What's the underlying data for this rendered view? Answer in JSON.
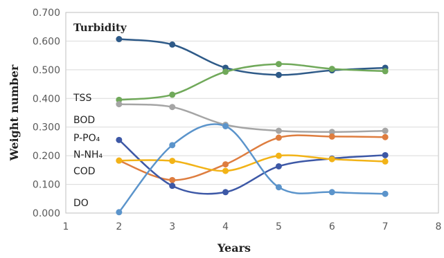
{
  "chart_data": {
    "type": "line",
    "xlabel": "Years",
    "ylabel": "Weight number",
    "xlim": [
      1,
      8
    ],
    "ylim": [
      0,
      0.7
    ],
    "x_ticks": [
      "1",
      "2",
      "3",
      "4",
      "5",
      "6",
      "7",
      "8"
    ],
    "y_ticks": [
      "0.000",
      "0.100",
      "0.200",
      "0.300",
      "0.400",
      "0.500",
      "0.600",
      "0.700"
    ],
    "grid": "horizontal",
    "x": [
      2,
      3,
      4,
      5,
      6,
      7
    ],
    "series": [
      {
        "name": "Turbidity",
        "color": "#2e5a88",
        "values": [
          0.607,
          0.588,
          0.507,
          0.482,
          0.498,
          0.507
        ]
      },
      {
        "name": "TSS",
        "color": "#70a95a",
        "values": [
          0.395,
          0.413,
          0.493,
          0.52,
          0.503,
          0.495
        ]
      },
      {
        "name": "BOD",
        "color": "#a5a5a5",
        "values": [
          0.38,
          0.37,
          0.308,
          0.287,
          0.283,
          0.287
        ]
      },
      {
        "name": "P-PO₄",
        "color": "#de7d3f",
        "values": [
          0.183,
          0.115,
          0.17,
          0.263,
          0.267,
          0.265
        ]
      },
      {
        "name": "N-NH₄",
        "color": "#3d58a6",
        "values": [
          0.255,
          0.095,
          0.073,
          0.163,
          0.19,
          0.202
        ]
      },
      {
        "name": "COD",
        "color": "#f2b317",
        "values": [
          0.183,
          0.182,
          0.147,
          0.2,
          0.188,
          0.18
        ]
      },
      {
        "name": "DO",
        "color": "#5b94cb",
        "values": [
          0.003,
          0.237,
          0.303,
          0.09,
          0.073,
          0.067
        ]
      }
    ]
  }
}
